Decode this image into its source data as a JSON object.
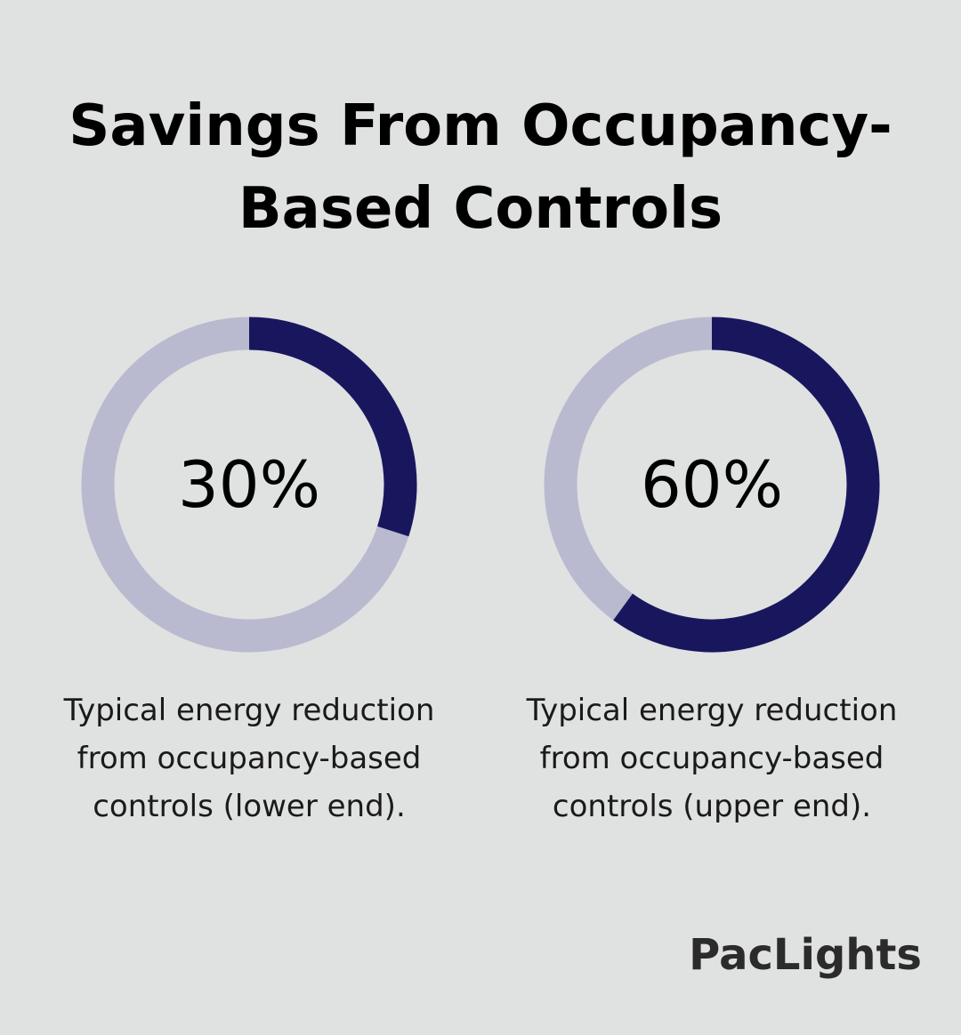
{
  "title_lines": [
    "Savings From Occupancy-",
    "Based Controls"
  ],
  "colors": {
    "background": "#e0e1e1",
    "filled": "#18175e",
    "track": "#b9bacf"
  },
  "chart_data": [
    {
      "type": "pie",
      "value": 30,
      "max": 100,
      "label": "30%",
      "caption_lines": [
        "Typical energy reduction",
        "from occupancy-based",
        "controls (lower end)."
      ]
    },
    {
      "type": "pie",
      "value": 60,
      "max": 100,
      "label": "60%",
      "caption_lines": [
        "Typical energy reduction",
        "from occupancy-based",
        "controls (upper end)."
      ]
    }
  ],
  "logo": "PacLights"
}
